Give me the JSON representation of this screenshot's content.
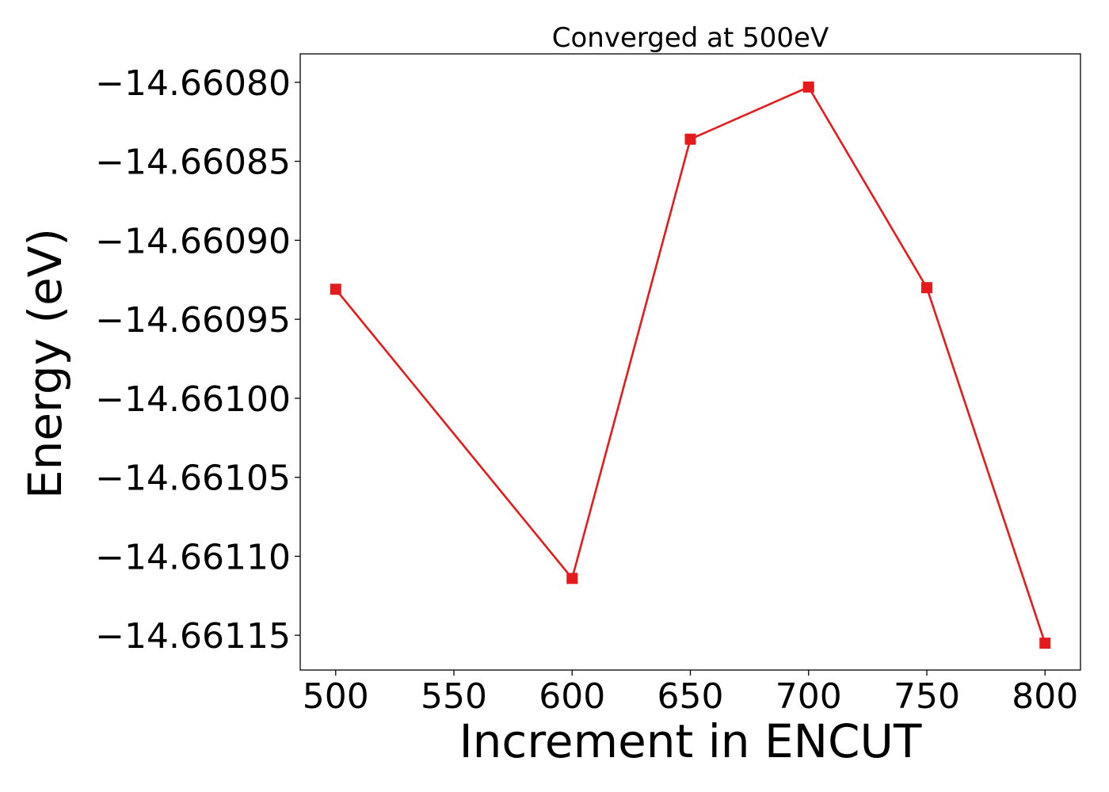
{
  "chart_data": {
    "type": "line",
    "title": "Converged at 500eV",
    "xlabel": "Increment in ENCUT",
    "ylabel": "Energy (eV)",
    "x": [
      500,
      600,
      650,
      700,
      750,
      800
    ],
    "series": [
      {
        "values": [
          -14.660931,
          -14.661114,
          -14.660836,
          -14.660803,
          -14.66093,
          -14.661155
        ],
        "color": "#e41a1c",
        "marker": "square"
      }
    ],
    "xticks": [
      500,
      550,
      600,
      650,
      700,
      750,
      800
    ],
    "xtick_labels": [
      "500",
      "550",
      "600",
      "650",
      "700",
      "750",
      "800"
    ],
    "yticks": [
      -14.6608,
      -14.66085,
      -14.6609,
      -14.66095,
      -14.661,
      -14.66105,
      -14.6611,
      -14.66115
    ],
    "ytick_labels": [
      "−14.66080",
      "−14.66085",
      "−14.66090",
      "−14.66095",
      "−14.66100",
      "−14.66105",
      "−14.66110",
      "−14.66115"
    ],
    "xlim": [
      485,
      815
    ],
    "ylim": [
      -14.661172,
      -14.660782
    ],
    "grid": false,
    "legend": "none"
  }
}
